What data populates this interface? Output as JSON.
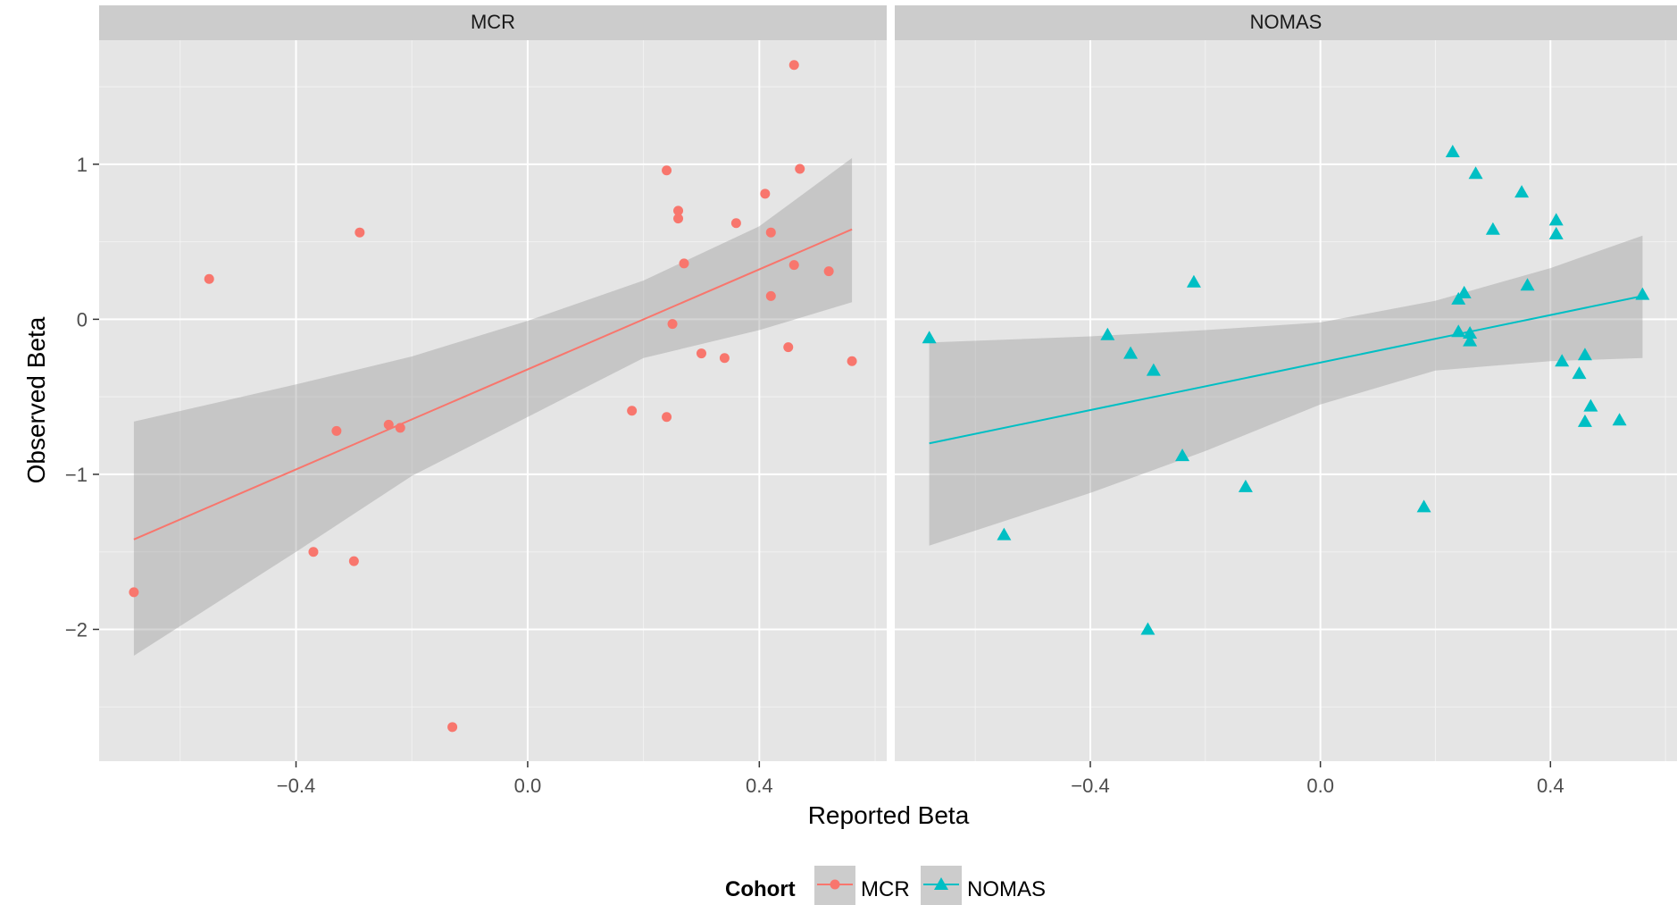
{
  "chart_data": {
    "type": "scatter",
    "xlabel": "Reported Beta",
    "ylabel": "Observed Beta",
    "xlim": [
      -0.74,
      0.62
    ],
    "ylim": [
      -2.85,
      1.8
    ],
    "x_ticks": [
      -0.4,
      0.0,
      0.4
    ],
    "x_tick_labels": [
      "−0.4",
      "0.0",
      "0.4"
    ],
    "y_ticks": [
      1,
      0,
      -1,
      -2
    ],
    "y_tick_labels": [
      "1",
      "0",
      "−1",
      "−2"
    ],
    "grid": true,
    "legend": {
      "title": "Cohort",
      "placement": "bottom",
      "entries": [
        "MCR",
        "NOMAS"
      ]
    },
    "panels": [
      {
        "name": "MCR",
        "color": "#F8766D",
        "shape": "circle",
        "points": [
          [
            -0.68,
            -1.76
          ],
          [
            -0.55,
            0.26
          ],
          [
            -0.29,
            0.56
          ],
          [
            -0.33,
            -0.72
          ],
          [
            -0.24,
            -0.68
          ],
          [
            -0.22,
            -0.7
          ],
          [
            -0.37,
            -1.5
          ],
          [
            -0.3,
            -1.56
          ],
          [
            -0.13,
            -2.63
          ],
          [
            0.18,
            -0.59
          ],
          [
            0.24,
            -0.63
          ],
          [
            0.24,
            0.96
          ],
          [
            0.25,
            -0.03
          ],
          [
            0.26,
            0.7
          ],
          [
            0.26,
            0.65
          ],
          [
            0.27,
            0.36
          ],
          [
            0.3,
            -0.22
          ],
          [
            0.34,
            -0.25
          ],
          [
            0.36,
            0.62
          ],
          [
            0.41,
            0.81
          ],
          [
            0.42,
            0.56
          ],
          [
            0.42,
            0.15
          ],
          [
            0.45,
            -0.18
          ],
          [
            0.46,
            0.35
          ],
          [
            0.46,
            1.64
          ],
          [
            0.47,
            0.97
          ],
          [
            0.52,
            0.31
          ],
          [
            0.56,
            -0.27
          ]
        ],
        "fit": {
          "x_start": -0.68,
          "y_start": -1.42,
          "x_end": 0.56,
          "y_end": 0.58
        },
        "band": {
          "x": [
            -0.68,
            -0.4,
            -0.2,
            0.0,
            0.2,
            0.4,
            0.56
          ],
          "upper": [
            -0.66,
            -0.42,
            -0.24,
            -0.01,
            0.25,
            0.6,
            1.04
          ],
          "lower": [
            -2.17,
            -1.5,
            -1.01,
            -0.63,
            -0.25,
            -0.07,
            0.11
          ]
        }
      },
      {
        "name": "NOMAS",
        "color": "#00BFC4",
        "shape": "triangle",
        "points": [
          [
            -0.68,
            -0.12
          ],
          [
            -0.55,
            -1.39
          ],
          [
            -0.37,
            -0.1
          ],
          [
            -0.33,
            -0.22
          ],
          [
            -0.29,
            -0.33
          ],
          [
            -0.3,
            -2.0
          ],
          [
            -0.24,
            -0.88
          ],
          [
            -0.22,
            0.24
          ],
          [
            -0.13,
            -1.08
          ],
          [
            0.18,
            -1.21
          ],
          [
            0.23,
            1.08
          ],
          [
            0.24,
            0.13
          ],
          [
            0.24,
            -0.08
          ],
          [
            0.25,
            0.17
          ],
          [
            0.26,
            -0.09
          ],
          [
            0.26,
            -0.14
          ],
          [
            0.27,
            0.94
          ],
          [
            0.3,
            0.58
          ],
          [
            0.35,
            0.82
          ],
          [
            0.36,
            0.22
          ],
          [
            0.41,
            0.64
          ],
          [
            0.41,
            0.55
          ],
          [
            0.42,
            -0.27
          ],
          [
            0.45,
            -0.35
          ],
          [
            0.46,
            -0.23
          ],
          [
            0.46,
            -0.66
          ],
          [
            0.47,
            -0.56
          ],
          [
            0.52,
            -0.65
          ],
          [
            0.56,
            0.16
          ]
        ],
        "fit": {
          "x_start": -0.68,
          "y_start": -0.8,
          "x_end": 0.56,
          "y_end": 0.15
        },
        "band": {
          "x": [
            -0.68,
            -0.4,
            -0.2,
            0.0,
            0.2,
            0.4,
            0.56
          ],
          "upper": [
            -0.15,
            -0.11,
            -0.07,
            -0.02,
            0.12,
            0.33,
            0.54
          ],
          "lower": [
            -1.46,
            -1.12,
            -0.85,
            -0.55,
            -0.33,
            -0.27,
            -0.25
          ]
        }
      }
    ]
  }
}
